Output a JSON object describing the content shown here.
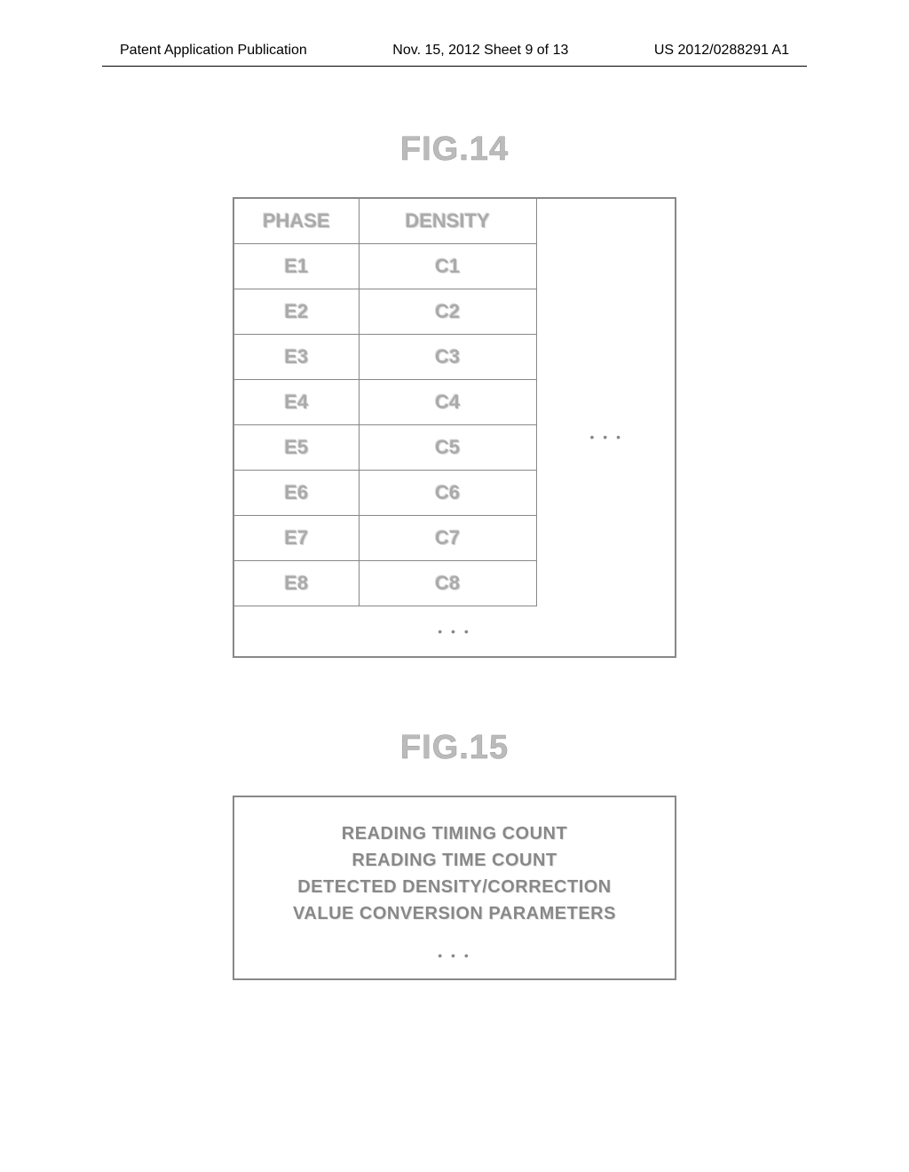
{
  "header": {
    "left": "Patent Application Publication",
    "center": "Nov. 15, 2012  Sheet 9 of 13",
    "right": "US 2012/0288291 A1"
  },
  "fig14": {
    "title": "FIG.14",
    "columns": [
      "PHASE",
      "DENSITY"
    ],
    "rows": [
      [
        "E1",
        "C1"
      ],
      [
        "E2",
        "C2"
      ],
      [
        "E3",
        "C3"
      ],
      [
        "E4",
        "C4"
      ],
      [
        "E5",
        "C5"
      ],
      [
        "E6",
        "C6"
      ],
      [
        "E7",
        "C7"
      ],
      [
        "E8",
        "C8"
      ]
    ],
    "ellipsis_right": "• • •",
    "ellipsis_bottom": "• • •",
    "border_color": "#888888",
    "text_color": "#aaaaaa",
    "header_fontsize": 22,
    "cell_fontsize": 22
  },
  "fig15": {
    "title": "FIG.15",
    "lines": [
      "READING TIMING COUNT",
      "READING TIME COUNT",
      "DETECTED DENSITY/CORRECTION",
      "VALUE CONVERSION PARAMETERS"
    ],
    "ellipsis": "• • •",
    "border_color": "#888888",
    "text_color": "#888888",
    "fontsize": 20
  }
}
